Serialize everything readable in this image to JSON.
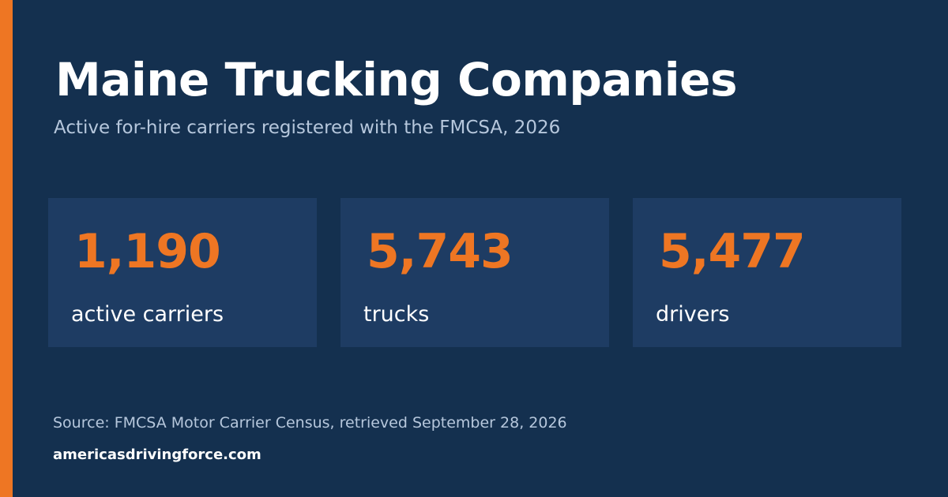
{
  "header": {
    "title": "Maine Trucking Companies",
    "subtitle": "Active for-hire carriers registered with the FMCSA, 2026"
  },
  "stats": [
    {
      "value": "1,190",
      "label": "active carriers"
    },
    {
      "value": "5,743",
      "label": "trucks"
    },
    {
      "value": "5,477",
      "label": "drivers"
    }
  ],
  "footer": {
    "source": "Source: FMCSA Motor Carrier Census, retrieved September 28, 2026",
    "site": "americasdrivingforce.com"
  },
  "colors": {
    "background": "#14304f",
    "stat_box": "#1e3c63",
    "accent": "#ee7623",
    "text_primary": "#ffffff",
    "text_muted": "#b6c7dc"
  }
}
